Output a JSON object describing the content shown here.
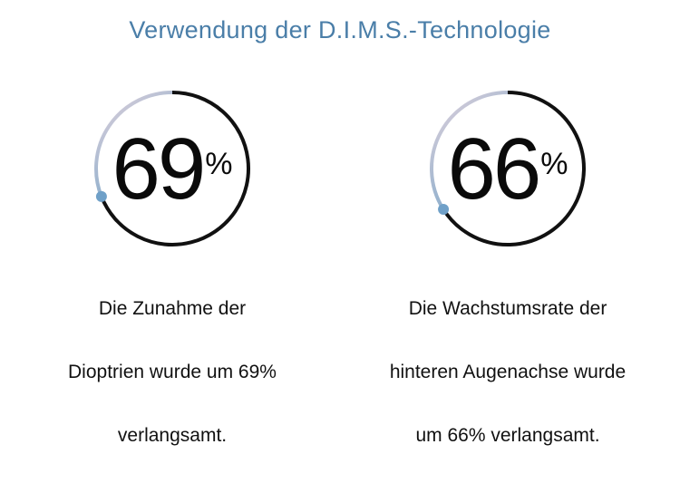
{
  "colors": {
    "title": "#4a7ea8",
    "progress_arc": "#111111",
    "track_start": "#e2d2dc",
    "track_end": "#7da8c9",
    "marker": "#6fa0c8"
  },
  "title": "Verwendung der D.I.M.S.-Technologie",
  "chart_data": [
    {
      "type": "radial-progress",
      "value": 69,
      "unit": "%",
      "caption_lines": [
        "Die Zunahme der",
        "Dioptrien wurde um 69%",
        "verlangsamt."
      ]
    },
    {
      "type": "radial-progress",
      "value": 66,
      "unit": "%",
      "caption_lines": [
        "Die Wachstumsrate der",
        "hinteren Augenachse wurde",
        "um 66% verlangsamt."
      ]
    }
  ]
}
